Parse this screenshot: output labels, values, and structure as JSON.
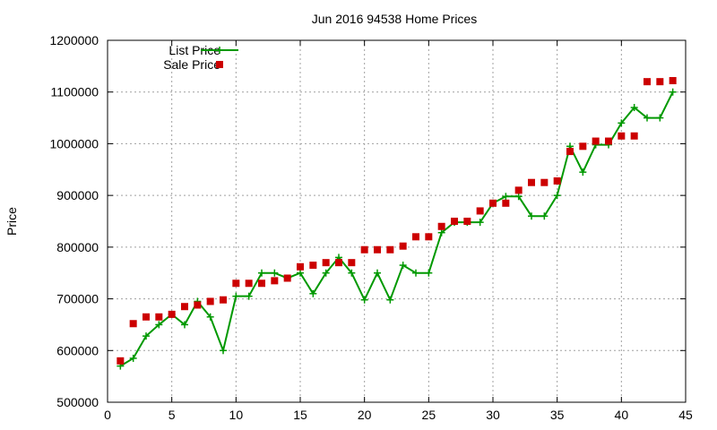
{
  "chart_data": {
    "type": "line",
    "title": "Jun 2016 94538 Home Prices",
    "xlabel": "",
    "ylabel": "Price",
    "xlim": [
      0,
      45
    ],
    "ylim": [
      500000,
      1200000
    ],
    "x_ticks": [
      0,
      5,
      10,
      15,
      20,
      25,
      30,
      35,
      40,
      45
    ],
    "y_ticks": [
      500000,
      600000,
      700000,
      800000,
      900000,
      1000000,
      1100000,
      1200000
    ],
    "grid": true,
    "legend_position": "top-left",
    "series": [
      {
        "name": "List Price",
        "style": "linespoints",
        "marker": "plus",
        "color": "#009900",
        "x": [
          1,
          2,
          3,
          4,
          5,
          6,
          7,
          8,
          9,
          10,
          11,
          12,
          13,
          14,
          15,
          16,
          17,
          18,
          19,
          20,
          21,
          22,
          23,
          24,
          25,
          26,
          27,
          28,
          29,
          30,
          31,
          32,
          33,
          34,
          35,
          36,
          37,
          38,
          39,
          40,
          41,
          42,
          43,
          44
        ],
        "values": [
          570000,
          585000,
          628000,
          650000,
          670000,
          650000,
          695000,
          665000,
          600000,
          705000,
          705000,
          750000,
          750000,
          740000,
          750000,
          710000,
          750000,
          780000,
          750000,
          698000,
          750000,
          698000,
          765000,
          750000,
          750000,
          828000,
          848000,
          848000,
          848000,
          885000,
          898000,
          898000,
          860000,
          860000,
          900000,
          995000,
          945000,
          998000,
          998000,
          1040000,
          1070000,
          1050000,
          1050000,
          1100000
        ]
      },
      {
        "name": "Sale Price",
        "style": "points",
        "marker": "square",
        "color": "#cc0000",
        "x": [
          1,
          2,
          3,
          4,
          5,
          6,
          7,
          8,
          9,
          10,
          11,
          12,
          13,
          14,
          15,
          16,
          17,
          18,
          19,
          20,
          21,
          22,
          23,
          24,
          25,
          26,
          27,
          28,
          29,
          30,
          31,
          32,
          33,
          34,
          35,
          36,
          37,
          38,
          39,
          40,
          41,
          42,
          43,
          44
        ],
        "values": [
          580000,
          652000,
          665000,
          665000,
          670000,
          685000,
          688000,
          695000,
          698000,
          730000,
          730000,
          730000,
          735000,
          740000,
          762000,
          765000,
          770000,
          770000,
          770000,
          795000,
          795000,
          795000,
          802000,
          820000,
          820000,
          840000,
          850000,
          850000,
          870000,
          885000,
          885000,
          910000,
          925000,
          925000,
          928000,
          985000,
          995000,
          1005000,
          1005000,
          1015000,
          1015000,
          1120000,
          1120000,
          1122000
        ]
      }
    ]
  }
}
